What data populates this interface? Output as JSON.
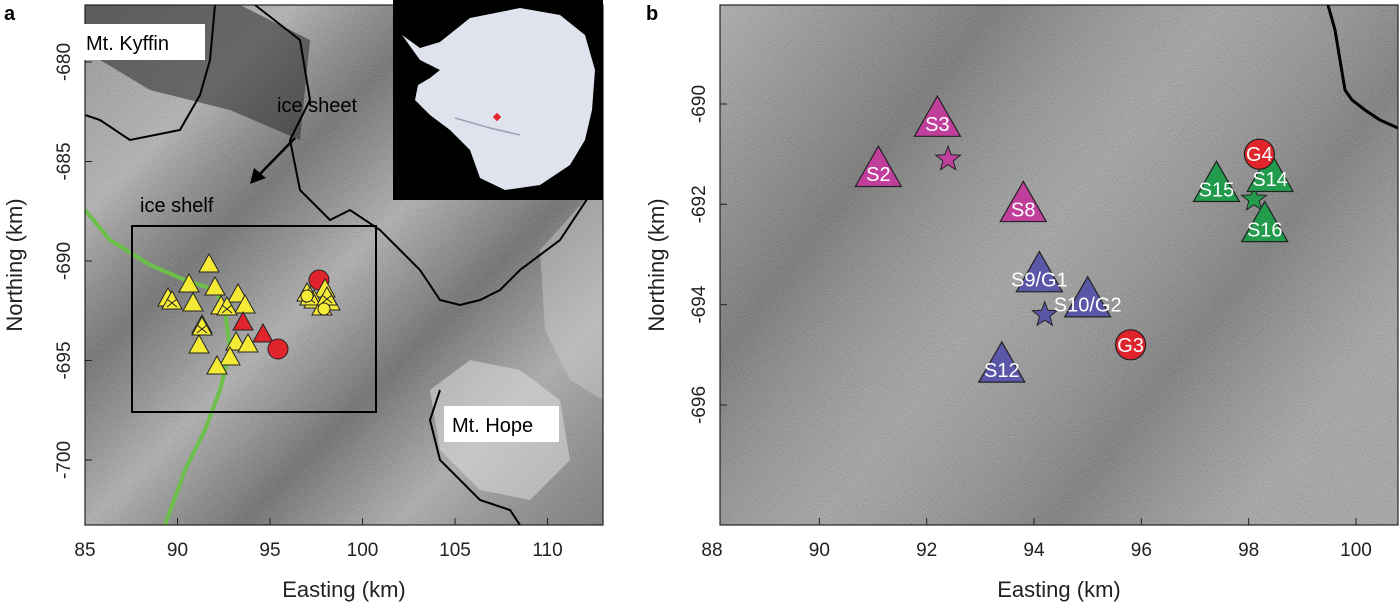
{
  "panel_a": {
    "letter": "a",
    "xlabel": "Easting (km)",
    "ylabel": "Northing (km)",
    "xticks": [
      "85",
      "90",
      "95",
      "100",
      "105",
      "110"
    ],
    "yticks": [
      "-680",
      "-685",
      "-690",
      "-695",
      "-700"
    ],
    "labels": {
      "kyffin": "Mt. Kyffin",
      "hope": "Mt. Hope",
      "ice_sheet": "ice sheet",
      "ice_shelf": "ice shelf"
    },
    "colors": {
      "triangle": "#f5ea35",
      "red": "#e0242b",
      "grounding_line": "#6cc04a",
      "coast": "#000000"
    }
  },
  "panel_b": {
    "letter": "b",
    "xlabel": "Easting (km)",
    "ylabel": "Northing (km)",
    "xticks": [
      "88",
      "90",
      "92",
      "94",
      "96",
      "98",
      "100"
    ],
    "yticks": [
      "-690",
      "-692",
      "-694",
      "-696"
    ],
    "sites": [
      {
        "label": "S3",
        "group": "magenta",
        "easting": 92.2,
        "northing": -690.3
      },
      {
        "label": "S2",
        "group": "magenta",
        "easting": 91.1,
        "northing": -691.3
      },
      {
        "label": "S8",
        "group": "magenta",
        "easting": 93.8,
        "northing": -692.0
      },
      {
        "label": "S9/G1",
        "group": "blue",
        "easting": 94.1,
        "northing": -693.4
      },
      {
        "label": "S10/G2",
        "group": "blue",
        "easting": 95.0,
        "northing": -693.9
      },
      {
        "label": "S12",
        "group": "blue",
        "easting": 93.4,
        "northing": -695.2
      },
      {
        "label": "S15",
        "group": "green",
        "easting": 97.4,
        "northing": -691.6
      },
      {
        "label": "S14",
        "group": "green",
        "easting": 98.4,
        "northing": -691.4
      },
      {
        "label": "S16",
        "group": "green",
        "easting": 98.3,
        "northing": -692.4
      }
    ],
    "gps": [
      {
        "label": "G4",
        "easting": 98.2,
        "northing": -691.0
      },
      {
        "label": "G3",
        "easting": 95.8,
        "northing": -694.8
      }
    ],
    "stars": [
      {
        "group": "magenta",
        "easting": 92.4,
        "northing": -691.1
      },
      {
        "group": "blue",
        "easting": 94.2,
        "northing": -694.2
      },
      {
        "group": "green",
        "easting": 98.1,
        "northing": -691.9
      }
    ],
    "colors": {
      "magenta": "#c03f9b",
      "blue": "#5b57a8",
      "green": "#229b4c",
      "red": "#e0242b"
    }
  }
}
